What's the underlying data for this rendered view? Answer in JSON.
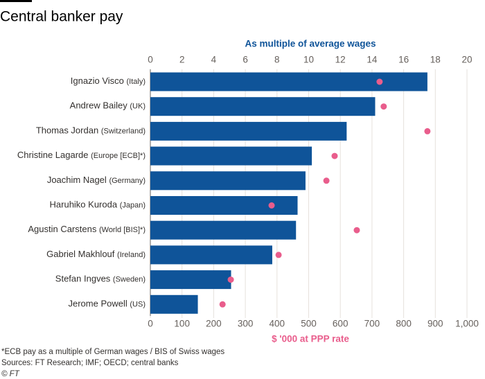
{
  "chart_data": {
    "type": "bar-dot",
    "title": "Central banker pay",
    "categories": [
      "Ignazio Visco",
      "Andrew Bailey",
      "Thomas Jordan",
      "Christine Lagarde",
      "Joachim Nagel",
      "Haruhiko Kuroda",
      "Agustin Carstens",
      "Gabriel Makhlouf",
      "Stefan Ingves",
      "Jerome Powell"
    ],
    "category_notes": [
      "(Italy)",
      "(UK)",
      "(Switzerland)",
      "(Europe [ECB]*)",
      "(Germany)",
      "(Japan)",
      "(World [BIS]*)",
      "(Ireland)",
      "(Sweden)",
      "(US)"
    ],
    "series": [
      {
        "name": "As multiple of average wages",
        "axis": "x2",
        "color": "#0f5499",
        "values": [
          17.5,
          14.2,
          12.4,
          10.2,
          9.8,
          9.3,
          9.2,
          7.7,
          5.1,
          3.0
        ]
      },
      {
        "name": "$ '000 at PPP rate",
        "axis": "x",
        "color": "#e95d8c",
        "values": [
          724,
          737,
          875,
          582,
          556,
          383,
          652,
          405,
          254,
          228
        ]
      }
    ],
    "x2lim": [
      0,
      20
    ],
    "x2ticks": [
      0,
      2,
      4,
      6,
      8,
      10,
      12,
      14,
      16,
      18,
      20
    ],
    "xlim": [
      0,
      1000
    ],
    "xticks": [
      0,
      100,
      200,
      300,
      400,
      500,
      600,
      700,
      800,
      900,
      {
        "value": 1000,
        "label": "1,000"
      }
    ],
    "grid": true,
    "notes": [
      "*ECB pay as a multiple of German wages / BIS of Swiss wages",
      "Sources:  FT Research; IMF; OECD; central banks",
      "© FT"
    ]
  }
}
